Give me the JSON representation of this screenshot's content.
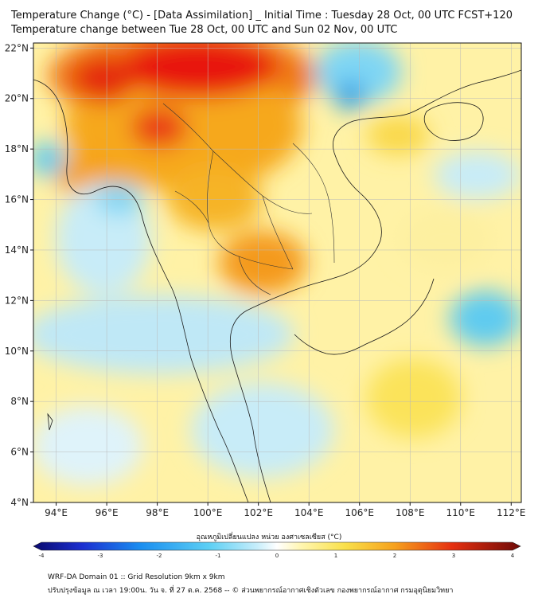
{
  "header": {
    "title_line1": "Temperature Change (°C) - [Data Assimilation] _ Initial Time : Tuesday 28 Oct, 00 UTC FCST+120",
    "title_line2": "Temperature change between Tue 28 Oct, 00 UTC and Sun 02 Nov, 00 UTC"
  },
  "map": {
    "lat_labels": [
      "22°N",
      "20°N",
      "18°N",
      "16°N",
      "14°N",
      "12°N",
      "10°N",
      "8°N",
      "6°N",
      "4°N"
    ],
    "lat_values": [
      22,
      20,
      18,
      16,
      14,
      12,
      10,
      8,
      6,
      4
    ],
    "lon_labels": [
      "94°E",
      "96°E",
      "98°E",
      "100°E",
      "102°E",
      "104°E",
      "106°E",
      "108°E",
      "110°E",
      "112°E"
    ],
    "lon_values": [
      94,
      96,
      98,
      100,
      102,
      104,
      106,
      108,
      110,
      112
    ],
    "lon_range": [
      93.1,
      112.4
    ],
    "lat_range": [
      4,
      22.2
    ]
  },
  "colorbar": {
    "title": "อุณหภูมิเปลี่ยนแปลง หน่วย องศาเซลเซียส (°C)",
    "tick_labels": [
      "-4",
      "-3",
      "-2",
      "-1",
      "0",
      "1",
      "2",
      "3",
      "4"
    ],
    "tick_values": [
      -4,
      -3,
      -2,
      -1,
      0,
      1,
      2,
      3,
      4
    ],
    "range": [
      -4,
      4
    ]
  },
  "footer": {
    "line1": "WRF-DA Domain 01 :: Grid Resolution 9km x 9km",
    "line2": "ปรับปรุงข้อมูล ณ เวลา 19:00น. วัน จ. ที่ 27 ต.ค. 2568 -- © ส่วนพยากรณ์อากาศเชิงตัวเลข กองพยากรณ์อากาศ กรมอุตุนิยมวิทยา"
  },
  "colors": {
    "strong_warm": "#e8140c",
    "warm": "#f5a623",
    "mild_warm": "#fbe35a",
    "neutral": "#fff9c4",
    "cool": "#5ecbf0",
    "strong_cool": "#2a9fe6"
  }
}
